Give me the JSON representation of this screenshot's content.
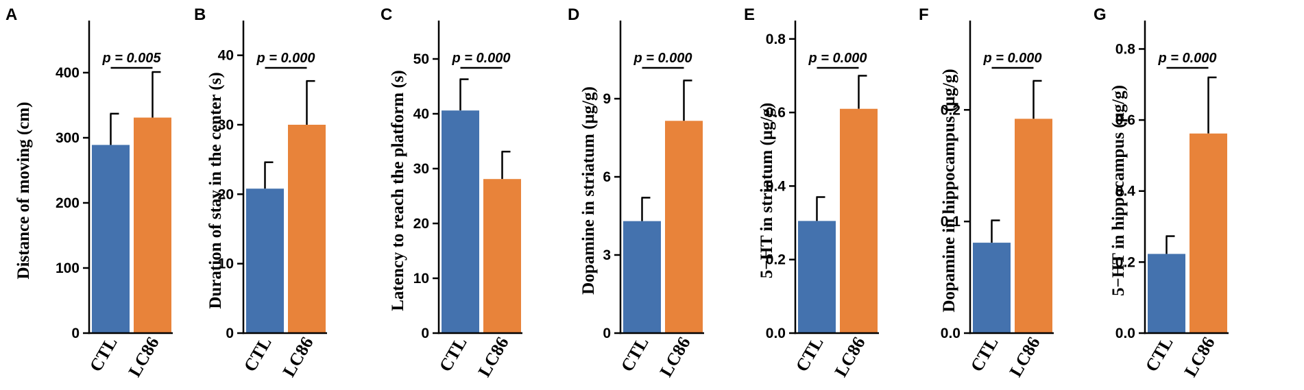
{
  "colors": {
    "ctl": "#4472AE",
    "lc86": "#E8833A",
    "axis": "#000000"
  },
  "chart_data": [
    {
      "panel": "A",
      "type": "bar",
      "categories": [
        "CTL",
        "LC86"
      ],
      "values": [
        289,
        331
      ],
      "errors": [
        48,
        70
      ],
      "ylabel": "Distance of moving (cm)",
      "ylim": [
        0,
        480
      ],
      "yticks": [
        0,
        100,
        200,
        300,
        400
      ],
      "ytick_labels": [
        "0",
        "100",
        "200",
        "300",
        "400"
      ],
      "annotation": "p = 0.005"
    },
    {
      "panel": "B",
      "type": "bar",
      "categories": [
        "CTL",
        "LC86"
      ],
      "values": [
        20.8,
        30.0
      ],
      "errors": [
        3.8,
        6.3
      ],
      "ylabel": "Duration of stay in the center (s)",
      "ylim": [
        0,
        45
      ],
      "yticks": [
        0,
        10,
        20,
        30,
        40
      ],
      "ytick_labels": [
        "0",
        "10",
        "20",
        "30",
        "40"
      ],
      "annotation": "p = 0.000"
    },
    {
      "panel": "C",
      "type": "bar",
      "categories": [
        "CTL",
        "LC86"
      ],
      "values": [
        40.6,
        28.1
      ],
      "errors": [
        5.7,
        5.0
      ],
      "ylabel": "Latency to reach the platform (s)",
      "ylim": [
        0,
        57
      ],
      "yticks": [
        0,
        10,
        20,
        30,
        40,
        50
      ],
      "ytick_labels": [
        "0",
        "10",
        "20",
        "30",
        "40",
        "50"
      ],
      "annotation": "p = 0.000"
    },
    {
      "panel": "D",
      "type": "bar",
      "categories": [
        "CTL",
        "LC86"
      ],
      "values": [
        4.3,
        8.15
      ],
      "errors": [
        0.9,
        1.55
      ],
      "ylabel": "Dopamine in striatum (μg/g)",
      "ylim": [
        0,
        12
      ],
      "yticks": [
        0,
        3,
        6,
        9
      ],
      "ytick_labels": [
        "0",
        "3",
        "6",
        "9"
      ],
      "annotation": "p = 0.000"
    },
    {
      "panel": "E",
      "type": "bar",
      "categories": [
        "CTL",
        "LC86"
      ],
      "values": [
        0.305,
        0.61
      ],
      "errors": [
        0.065,
        0.09
      ],
      "ylabel": "5−HT in striatum (μg/g)",
      "ylim": [
        0,
        0.85
      ],
      "yticks": [
        0,
        0.2,
        0.4,
        0.6,
        0.8
      ],
      "ytick_labels": [
        "0.0",
        "0.2",
        "0.4",
        "0.6",
        "0.8"
      ],
      "annotation": "p = 0.000"
    },
    {
      "panel": "F",
      "type": "bar",
      "categories": [
        "CTL",
        "LC86"
      ],
      "values": [
        0.081,
        0.192
      ],
      "errors": [
        0.02,
        0.034
      ],
      "ylabel": "Dopamine in hippocampus (μg/g)",
      "ylim": [
        0,
        0.28
      ],
      "yticks": [
        0,
        0.1,
        0.2
      ],
      "ytick_labels": [
        "0.0",
        "0.1",
        "0.2"
      ],
      "annotation": "p = 0.000"
    },
    {
      "panel": "G",
      "type": "bar",
      "categories": [
        "CTL",
        "LC86"
      ],
      "values": [
        0.223,
        0.562
      ],
      "errors": [
        0.05,
        0.158
      ],
      "ylabel": "5−HT in hippocampus (μg/g)",
      "ylim": [
        0,
        0.88
      ],
      "yticks": [
        0,
        0.2,
        0.4,
        0.6,
        0.8
      ],
      "ytick_labels": [
        "0.0",
        "0.2",
        "0.4",
        "0.6",
        "0.8"
      ],
      "annotation": "p = 0.000"
    }
  ]
}
